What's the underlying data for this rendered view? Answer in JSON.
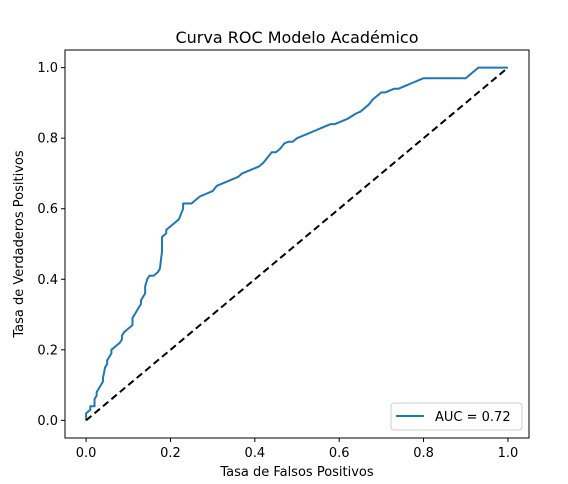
{
  "chart_data": {
    "type": "line",
    "title": "Curva ROC Modelo Académico",
    "xlabel": "Tasa de Falsos Positivos",
    "ylabel": "Tasa de Verdaderos Positivos",
    "xlim": [
      -0.05,
      1.05
    ],
    "ylim": [
      -0.05,
      1.05
    ],
    "xticks": [
      0.0,
      0.2,
      0.4,
      0.6,
      0.8,
      1.0
    ],
    "xtick_labels": [
      "0.0",
      "0.2",
      "0.4",
      "0.6",
      "0.8",
      "1.0"
    ],
    "yticks": [
      0.0,
      0.2,
      0.4,
      0.6,
      0.8,
      1.0
    ],
    "ytick_labels": [
      "0.0",
      "0.2",
      "0.4",
      "0.6",
      "0.8",
      "1.0"
    ],
    "grid": false,
    "legend_position": "lower right",
    "series": [
      {
        "name": "AUC = 0.72",
        "color": "#1f77b4",
        "style": "solid",
        "x": [
          0.0,
          0.0,
          0.01,
          0.01,
          0.02,
          0.02,
          0.025,
          0.025,
          0.03,
          0.035,
          0.04,
          0.04,
          0.045,
          0.05,
          0.05,
          0.055,
          0.06,
          0.06,
          0.07,
          0.08,
          0.085,
          0.085,
          0.09,
          0.1,
          0.11,
          0.11,
          0.12,
          0.13,
          0.13,
          0.14,
          0.14,
          0.145,
          0.15,
          0.16,
          0.17,
          0.175,
          0.18,
          0.18,
          0.19,
          0.19,
          0.2,
          0.2,
          0.21,
          0.22,
          0.23,
          0.23,
          0.25,
          0.26,
          0.27,
          0.28,
          0.3,
          0.31,
          0.32,
          0.33,
          0.33,
          0.36,
          0.37,
          0.38,
          0.39,
          0.4,
          0.41,
          0.42,
          0.43,
          0.44,
          0.45,
          0.46,
          0.47,
          0.48,
          0.49,
          0.5,
          0.51,
          0.52,
          0.53,
          0.54,
          0.55,
          0.56,
          0.57,
          0.58,
          0.59,
          0.6,
          0.61,
          0.62,
          0.64,
          0.65,
          0.66,
          0.67,
          0.68,
          0.69,
          0.7,
          0.71,
          0.72,
          0.73,
          0.74,
          0.75,
          0.76,
          0.77,
          0.78,
          0.79,
          0.8,
          0.81,
          0.82,
          0.84,
          0.87,
          0.9,
          0.91,
          0.92,
          0.93,
          0.95,
          0.96,
          0.98,
          1.0
        ],
        "y": [
          0.0,
          0.02,
          0.03,
          0.04,
          0.04,
          0.06,
          0.07,
          0.08,
          0.09,
          0.1,
          0.11,
          0.12,
          0.15,
          0.16,
          0.17,
          0.18,
          0.19,
          0.2,
          0.21,
          0.22,
          0.23,
          0.24,
          0.25,
          0.26,
          0.27,
          0.29,
          0.31,
          0.33,
          0.34,
          0.36,
          0.38,
          0.4,
          0.41,
          0.41,
          0.42,
          0.43,
          0.48,
          0.52,
          0.53,
          0.54,
          0.55,
          0.55,
          0.56,
          0.57,
          0.6,
          0.615,
          0.615,
          0.625,
          0.635,
          0.64,
          0.65,
          0.665,
          0.67,
          0.675,
          0.675,
          0.69,
          0.7,
          0.705,
          0.71,
          0.715,
          0.72,
          0.73,
          0.745,
          0.76,
          0.76,
          0.77,
          0.785,
          0.79,
          0.79,
          0.8,
          0.805,
          0.81,
          0.815,
          0.82,
          0.825,
          0.83,
          0.835,
          0.84,
          0.84,
          0.845,
          0.85,
          0.855,
          0.87,
          0.875,
          0.885,
          0.895,
          0.91,
          0.92,
          0.93,
          0.93,
          0.935,
          0.94,
          0.94,
          0.945,
          0.95,
          0.955,
          0.96,
          0.965,
          0.97,
          0.97,
          0.97,
          0.97,
          0.97,
          0.97,
          0.98,
          0.99,
          1.0,
          1.0,
          1.0,
          1.0,
          1.0
        ]
      },
      {
        "color": "#000000",
        "style": "dashed",
        "x": [
          0.0,
          1.0
        ],
        "y": [
          0.0,
          1.0
        ]
      }
    ]
  }
}
